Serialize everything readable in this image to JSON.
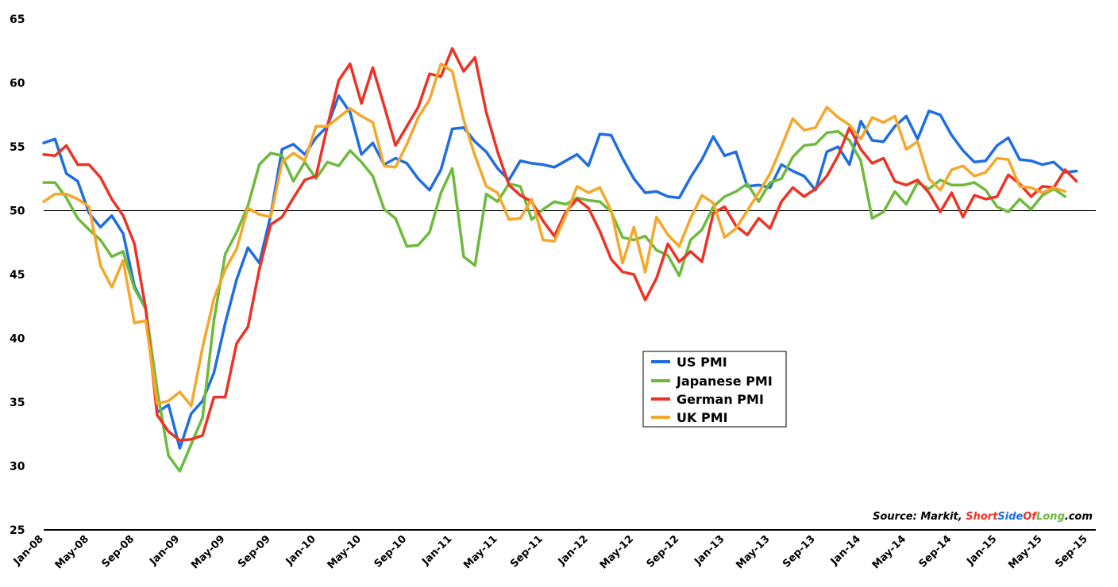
{
  "chart_data": {
    "type": "line",
    "ylim": [
      25,
      65
    ],
    "yticks": [
      "25",
      "30",
      "35",
      "40",
      "45",
      "50",
      "55",
      "60",
      "65"
    ],
    "reference_line": 50,
    "x_tick_labels": [
      "Jan-08",
      "May-08",
      "Sep-08",
      "Jan-09",
      "May-09",
      "Sep-09",
      "Jan-10",
      "May-10",
      "Sep-10",
      "Jan-11",
      "May-11",
      "Sep-11",
      "Jan-12",
      "May-12",
      "Sep-12",
      "Jan-13",
      "May-13",
      "Sep-13",
      "Jan-14",
      "May-14",
      "Sep-14",
      "Jan-15",
      "May-15",
      "Sep-15"
    ],
    "x_start": "2008-01",
    "x_end": "2015-09",
    "legend_position": "center-right",
    "series": [
      {
        "name": "US PMI",
        "color": "#1f6ee0",
        "values": [
          55.3,
          55.6,
          52.9,
          52.3,
          49.8,
          48.7,
          49.6,
          48.2,
          44.1,
          42.3,
          34.2,
          34.8,
          31.4,
          34.1,
          35.1,
          37.3,
          41.2,
          44.6,
          47.1,
          45.9,
          49.6,
          54.8,
          55.2,
          54.4,
          55.7,
          56.6,
          59.0,
          57.7,
          54.4,
          55.3,
          53.6,
          54.1,
          53.7,
          52.5,
          51.6,
          53.2,
          56.4,
          56.5,
          55.4,
          54.6,
          53.3,
          52.4,
          53.9,
          53.7,
          53.6,
          53.4,
          53.9,
          54.4,
          53.5,
          56.0,
          55.9,
          54.1,
          52.5,
          51.4,
          51.5,
          51.1,
          51.0,
          52.6,
          54.0,
          55.8,
          54.3,
          54.6,
          51.9,
          52.0,
          51.8,
          53.6,
          53.1,
          52.7,
          51.6,
          54.6,
          55.0,
          53.6,
          57.0,
          55.5,
          55.4,
          56.6,
          57.4,
          55.6,
          57.8,
          57.5,
          55.9,
          54.7,
          53.8,
          53.9,
          55.1,
          55.7,
          54.0,
          53.9,
          53.6,
          53.8,
          53.0,
          53.1
        ]
      },
      {
        "name": "Japanese PMI",
        "color": "#6dba3c",
        "values": [
          52.2,
          52.2,
          51.0,
          49.4,
          48.5,
          47.7,
          46.4,
          46.8,
          43.9,
          42.3,
          36.0,
          30.8,
          29.6,
          31.7,
          33.8,
          41.4,
          46.6,
          48.3,
          50.4,
          53.6,
          54.5,
          54.3,
          52.3,
          53.8,
          52.5,
          53.8,
          53.5,
          54.7,
          53.8,
          52.7,
          50.1,
          49.4,
          47.2,
          47.3,
          48.3,
          51.4,
          53.3,
          46.4,
          45.7,
          51.3,
          50.7,
          52.1,
          51.9,
          49.3,
          50.1,
          50.7,
          50.5,
          51.0,
          50.8,
          50.7,
          49.9,
          47.9,
          47.7,
          48.0,
          46.9,
          46.5,
          44.9,
          47.7,
          48.5,
          50.3,
          51.1,
          51.5,
          52.1,
          50.7,
          52.2,
          52.5,
          54.2,
          55.1,
          55.2,
          56.1,
          56.2,
          55.5,
          53.9,
          49.4,
          49.9,
          51.5,
          50.5,
          52.2,
          51.7,
          52.4,
          52.0,
          52.0,
          52.2,
          51.6,
          50.3,
          49.9,
          50.9,
          50.1,
          51.2,
          51.7,
          51.1
        ]
      },
      {
        "name": "German PMI",
        "color": "#ee3224",
        "values": [
          54.4,
          54.3,
          55.1,
          53.6,
          53.6,
          52.6,
          50.9,
          49.6,
          47.4,
          42.3,
          34.0,
          32.7,
          32.0,
          32.1,
          32.4,
          35.4,
          35.4,
          39.6,
          40.9,
          45.4,
          48.9,
          49.5,
          51.0,
          52.4,
          52.7,
          56.6,
          60.2,
          61.5,
          58.4,
          61.2,
          58.2,
          55.1,
          56.6,
          58.1,
          60.7,
          60.5,
          62.7,
          60.9,
          62.0,
          57.7,
          54.6,
          52.0,
          51.2,
          50.7,
          49.2,
          48.0,
          49.9,
          50.9,
          50.2,
          48.4,
          46.2,
          45.2,
          45.0,
          43.0,
          44.7,
          47.4,
          46.0,
          46.8,
          46.0,
          49.8,
          50.3,
          48.8,
          48.1,
          49.4,
          48.6,
          50.7,
          51.8,
          51.1,
          51.7,
          52.7,
          54.3,
          56.5,
          54.8,
          53.7,
          54.1,
          52.3,
          52.0,
          52.4,
          51.4,
          49.9,
          51.4,
          49.5,
          51.2,
          50.9,
          51.1,
          52.8,
          52.1,
          51.1,
          51.9,
          51.8,
          53.2,
          52.3
        ]
      },
      {
        "name": "UK PMI",
        "color": "#f6a72a",
        "values": [
          50.7,
          51.3,
          51.3,
          50.9,
          50.3,
          45.7,
          44.0,
          46.1,
          41.2,
          41.4,
          34.9,
          35.1,
          35.8,
          34.7,
          39.3,
          43.1,
          45.4,
          47.0,
          50.2,
          49.7,
          49.5,
          53.8,
          54.5,
          53.9,
          56.6,
          56.6,
          57.3,
          58.0,
          57.4,
          56.9,
          53.5,
          53.4,
          55.2,
          57.3,
          58.7,
          61.5,
          60.9,
          57.1,
          54.3,
          51.9,
          51.4,
          49.3,
          49.4,
          50.9,
          47.7,
          47.6,
          49.6,
          51.9,
          51.4,
          51.8,
          50.0,
          45.9,
          48.7,
          45.2,
          49.5,
          48.1,
          47.2,
          49.4,
          51.2,
          50.6,
          47.9,
          48.6,
          50.0,
          51.4,
          52.9,
          55.0,
          57.2,
          56.3,
          56.5,
          58.1,
          57.3,
          56.7,
          55.6,
          57.3,
          56.9,
          57.4,
          54.8,
          55.4,
          52.5,
          51.6,
          53.2,
          53.5,
          52.7,
          53.0,
          54.1,
          54.0,
          51.9,
          51.8,
          51.4,
          51.8,
          51.5
        ]
      }
    ],
    "source": {
      "prefix": "Source: Markit, ",
      "brand_red": "Short",
      "brand_blue": "Side",
      "brand_red2": "Of",
      "brand_green": "Long",
      "suffix": ".com"
    }
  }
}
